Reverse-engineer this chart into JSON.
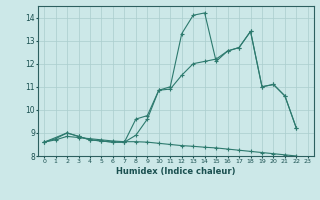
{
  "xlabel": "Humidex (Indice chaleur)",
  "bg_color": "#cce8e8",
  "line_color": "#2d7a6e",
  "grid_color": "#aacece",
  "xlim": [
    -0.5,
    23.5
  ],
  "ylim": [
    8,
    14.5
  ],
  "yticks": [
    8,
    9,
    10,
    11,
    12,
    13,
    14
  ],
  "xticks": [
    0,
    1,
    2,
    3,
    4,
    5,
    6,
    7,
    8,
    9,
    10,
    11,
    12,
    13,
    14,
    15,
    16,
    17,
    18,
    19,
    20,
    21,
    22,
    23
  ],
  "line1_x": [
    0,
    1,
    2,
    3,
    4,
    5,
    6,
    7,
    8,
    9,
    10,
    11,
    12,
    13,
    14,
    15,
    16,
    17,
    18,
    19,
    20,
    21,
    22,
    23
  ],
  "line1_y": [
    8.6,
    8.7,
    8.85,
    8.8,
    8.75,
    8.7,
    8.65,
    8.62,
    8.62,
    8.6,
    8.55,
    8.5,
    8.45,
    8.42,
    8.38,
    8.35,
    8.3,
    8.25,
    8.2,
    8.15,
    8.1,
    8.05,
    8.0,
    7.75
  ],
  "line2_x": [
    0,
    1,
    2,
    3,
    4,
    5,
    6,
    7,
    8,
    9,
    10,
    11,
    12,
    13,
    14,
    15,
    16,
    17,
    18,
    19,
    20,
    21,
    22
  ],
  "line2_y": [
    8.6,
    8.75,
    9.0,
    8.85,
    8.7,
    8.65,
    8.6,
    8.6,
    8.9,
    9.6,
    10.85,
    11.0,
    13.3,
    14.1,
    14.2,
    12.1,
    12.55,
    12.7,
    13.4,
    11.0,
    11.1,
    10.6,
    9.2
  ],
  "line3_x": [
    0,
    2,
    3,
    4,
    5,
    6,
    7,
    8,
    9,
    10,
    11,
    12,
    13,
    14,
    15,
    16,
    17,
    18,
    19,
    20,
    21,
    22
  ],
  "line3_y": [
    8.6,
    9.0,
    8.85,
    8.7,
    8.65,
    8.6,
    8.6,
    9.6,
    9.75,
    10.85,
    10.9,
    11.5,
    12.0,
    12.1,
    12.2,
    12.55,
    12.7,
    13.4,
    11.0,
    11.1,
    10.6,
    9.2
  ]
}
